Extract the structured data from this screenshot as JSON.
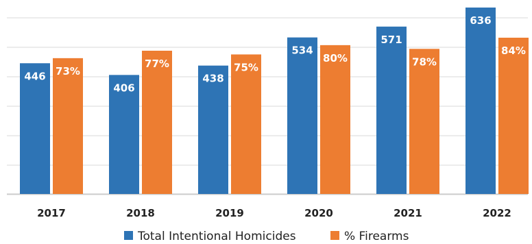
{
  "chart_data": {
    "type": "bar",
    "categories": [
      "2017",
      "2018",
      "2019",
      "2020",
      "2021",
      "2022"
    ],
    "series": [
      {
        "name": "Total Intentional Homicides",
        "values": [
          446,
          406,
          438,
          534,
          571,
          636
        ],
        "labels": [
          "446",
          "406",
          "438",
          "534",
          "571",
          "636"
        ],
        "color": "#2e74b5"
      },
      {
        "name": "% Firearms",
        "values": [
          73,
          77,
          75,
          80,
          78,
          84
        ],
        "labels": [
          "73%",
          "77%",
          "75%",
          "80%",
          "78%",
          "84%"
        ],
        "color": "#ed7d31"
      }
    ],
    "grid": true,
    "legend_position": "bottom"
  }
}
